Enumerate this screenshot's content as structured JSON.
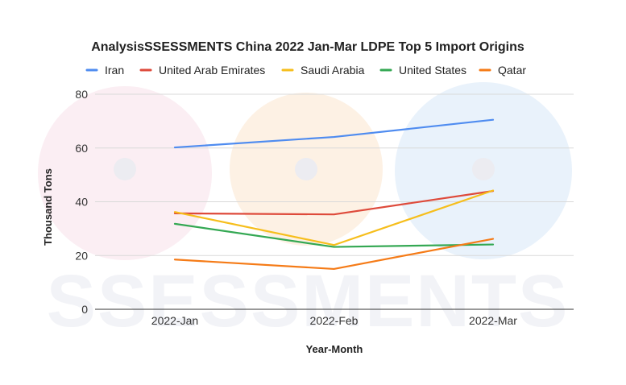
{
  "watermark": {
    "text": "SSESSMENTS"
  },
  "colors": {
    "background": "#ffffff",
    "grid": "#d9d9d9",
    "baseline": "#333333",
    "watermark_blue": "#e9f2fb",
    "watermark_pink": "#fbeef3",
    "watermark_peach": "#fdf1e4"
  },
  "chart_data": {
    "type": "line",
    "title": "AnalysisSSESSMENTS China 2022 Jan-Mar LDPE Top 5 Import Origins",
    "xlabel": "Year-Month",
    "ylabel": "Thousand Tons",
    "categories": [
      "2022-Jan",
      "2022-Feb",
      "2022-Mar"
    ],
    "ylim": [
      0,
      80
    ],
    "yticks": [
      0,
      20,
      40,
      60,
      80
    ],
    "grid": true,
    "legend_position": "top",
    "series": [
      {
        "name": "Iran",
        "color": "#4f8cf0",
        "values": [
          60.2,
          64.1,
          70.5
        ]
      },
      {
        "name": "United Arab Emirates",
        "color": "#de4a3b",
        "values": [
          35.7,
          35.3,
          44.0
        ]
      },
      {
        "name": "Saudi Arabia",
        "color": "#f6be1c",
        "values": [
          36.2,
          23.9,
          44.2
        ]
      },
      {
        "name": "United States",
        "color": "#34a853",
        "values": [
          31.8,
          23.2,
          24.1
        ]
      },
      {
        "name": "Qatar",
        "color": "#f57b17",
        "values": [
          18.5,
          15.0,
          26.2
        ]
      }
    ]
  }
}
